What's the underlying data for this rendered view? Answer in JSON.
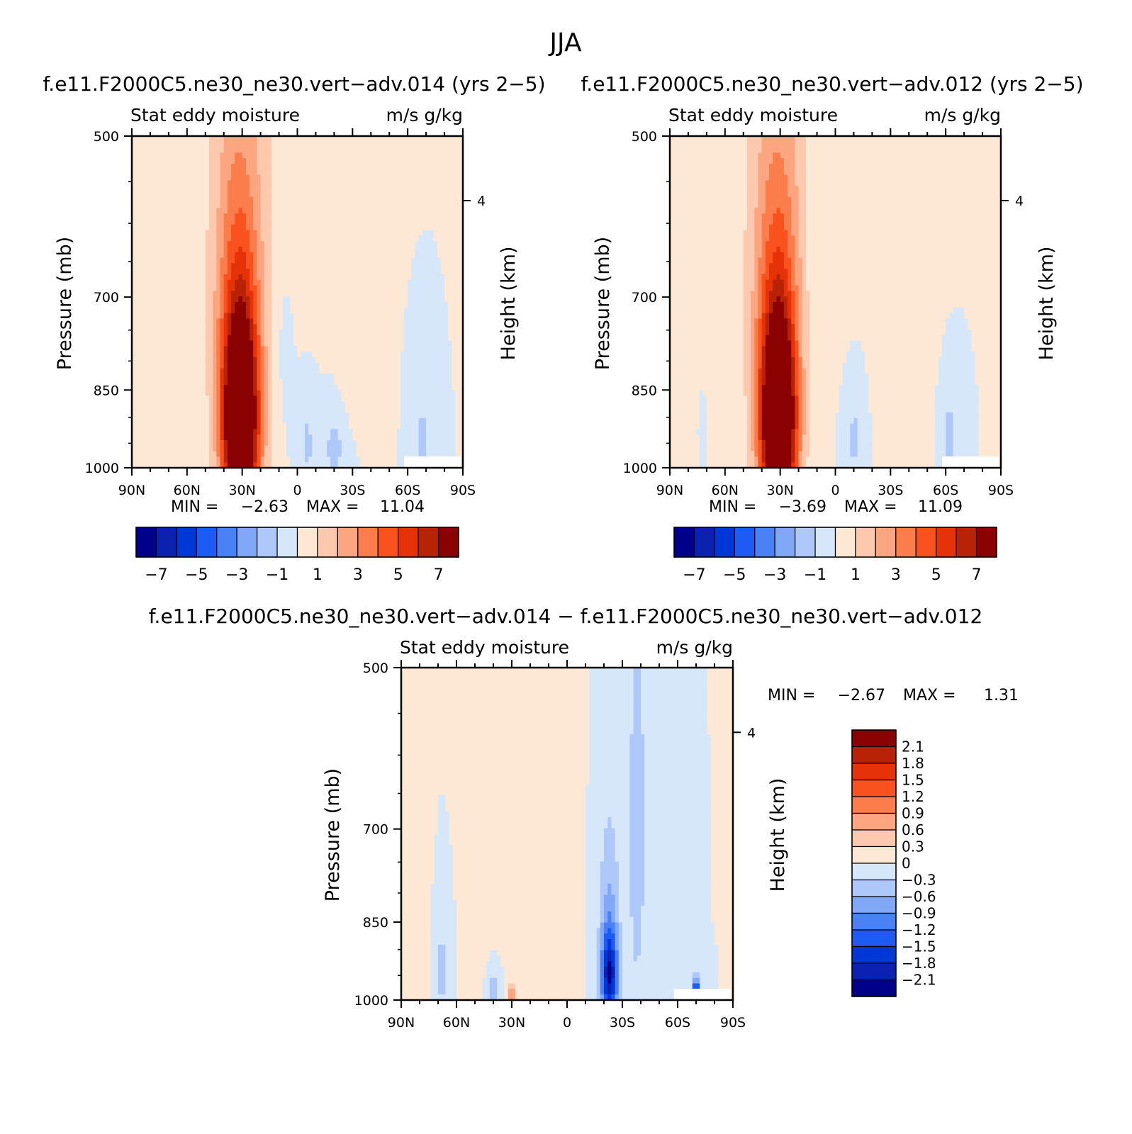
{
  "figure_title": "JJA",
  "colors": {
    "cmap": [
      "#00008b",
      "#0b22b0",
      "#0038d8",
      "#1c5cf5",
      "#4a82f5",
      "#80a8f7",
      "#aec8fa",
      "#d6e7fa",
      "#fde8d6",
      "#fdc9ae",
      "#fba680",
      "#fa7d4b",
      "#f9521f",
      "#e53209",
      "#b82206",
      "#8a0202"
    ],
    "diff_cmap": [
      "#00008b",
      "#0b22b0",
      "#0038d8",
      "#1c5cf5",
      "#4a82f5",
      "#80a8f7",
      "#aec8fa",
      "#d6e7fa",
      "#fde8d6",
      "#fdc9ae",
      "#fba680",
      "#fa7d4b",
      "#f9521f",
      "#e53209",
      "#b82206",
      "#8a0202"
    ]
  },
  "chart_data": [
    {
      "type": "heatmap",
      "title": "f.e11.F2000C5.ne30_ne30.vert−adv.014 (yrs 2−5)",
      "subtitle_left": "Stat eddy moisture",
      "subtitle_right": "m/s g/kg",
      "ylabel": "Pressure (mb)",
      "ylabel_right": "Height (km)",
      "x_ticks": [
        "90N",
        "60N",
        "30N",
        "0",
        "30S",
        "60S",
        "90S"
      ],
      "y_ticks": [
        "500",
        "700",
        "850",
        "1000"
      ],
      "right_ticks": [
        "4"
      ],
      "min_label": "MIN =",
      "min_value": "−2.63",
      "max_label": "MAX =",
      "max_value": "11.04",
      "colorbar_labels": [
        "−7",
        "−5",
        "−3",
        "−1",
        "1",
        "3",
        "5",
        "7"
      ],
      "colorbar_levels": [
        -7,
        -6,
        -5,
        -4,
        -3,
        -2,
        -1,
        0,
        1,
        2,
        3,
        4,
        5,
        6,
        7
      ],
      "features": [
        {
          "lat": 31,
          "p": 920,
          "amp": 11.0,
          "slat": 7,
          "sp": 140
        },
        {
          "lat": 32,
          "p": 700,
          "amp": 3.0,
          "slat": 9,
          "sp": 200
        },
        {
          "lat": 28,
          "p": 560,
          "amp": 0.9,
          "slat": 20,
          "sp": 260
        },
        {
          "lat": 67,
          "p": 750,
          "amp": 0.45,
          "slat": 3,
          "sp": 300
        },
        {
          "lat": 88,
          "p": 650,
          "amp": 0.4,
          "slat": 3,
          "sp": 400
        },
        {
          "lat": -5,
          "p": 950,
          "amp": -1.2,
          "slat": 4,
          "sp": 80
        },
        {
          "lat": -20,
          "p": 960,
          "amp": -1.3,
          "slat": 5,
          "sp": 60
        },
        {
          "lat": -68,
          "p": 950,
          "amp": -1.3,
          "slat": 3,
          "sp": 70
        },
        {
          "lat": -30,
          "p": 850,
          "amp": 0.4,
          "slat": 6,
          "sp": 60
        },
        {
          "lat": 8,
          "p": 760,
          "amp": -0.6,
          "slat": 5,
          "sp": 120
        }
      ]
    },
    {
      "type": "heatmap",
      "title": "f.e11.F2000C5.ne30_ne30.vert−adv.012 (yrs 2−5)",
      "subtitle_left": "Stat eddy moisture",
      "subtitle_right": "m/s g/kg",
      "ylabel": "Pressure (mb)",
      "ylabel_right": "Height (km)",
      "x_ticks": [
        "90N",
        "60N",
        "30N",
        "0",
        "30S",
        "60S",
        "90S"
      ],
      "y_ticks": [
        "500",
        "700",
        "850",
        "1000"
      ],
      "right_ticks": [
        "4"
      ],
      "min_label": "MIN =",
      "min_value": "−3.69",
      "max_label": "MAX =",
      "max_value": "11.09",
      "colorbar_labels": [
        "−7",
        "−5",
        "−3",
        "−1",
        "1",
        "3",
        "5",
        "7"
      ],
      "colorbar_levels": [
        -7,
        -6,
        -5,
        -4,
        -3,
        -2,
        -1,
        0,
        1,
        2,
        3,
        4,
        5,
        6,
        7
      ],
      "features": [
        {
          "lat": 31,
          "p": 920,
          "amp": 11.0,
          "slat": 7,
          "sp": 140
        },
        {
          "lat": 32,
          "p": 700,
          "amp": 3.0,
          "slat": 9,
          "sp": 200
        },
        {
          "lat": 28,
          "p": 560,
          "amp": 0.9,
          "slat": 20,
          "sp": 260
        },
        {
          "lat": 70,
          "p": 750,
          "amp": 0.5,
          "slat": 6,
          "sp": 300
        },
        {
          "lat": -35,
          "p": 780,
          "amp": 0.5,
          "slat": 8,
          "sp": 200
        },
        {
          "lat": -10,
          "p": 940,
          "amp": -1.2,
          "slat": 4,
          "sp": 80
        },
        {
          "lat": 72,
          "p": 920,
          "amp": -1.0,
          "slat": 2,
          "sp": 60
        },
        {
          "lat": -62,
          "p": 950,
          "amp": -1.6,
          "slat": 3,
          "sp": 60
        },
        {
          "lat": 10,
          "p": 700,
          "amp": -0.5,
          "slat": 6,
          "sp": 200
        }
      ]
    },
    {
      "type": "heatmap",
      "title": "f.e11.F2000C5.ne30_ne30.vert−adv.014 − f.e11.F2000C5.ne30_ne30.vert−adv.012",
      "subtitle_left": "Stat eddy moisture",
      "subtitle_right": "m/s g/kg",
      "ylabel": "Pressure (mb)",
      "ylabel_right": "Height (km)",
      "x_ticks": [
        "90N",
        "60N",
        "30N",
        "0",
        "30S",
        "60S",
        "90S"
      ],
      "y_ticks": [
        "500",
        "700",
        "850",
        "1000"
      ],
      "right_ticks": [
        "4"
      ],
      "min_label": "MIN =",
      "min_value": "−2.67",
      "max_label": "MAX =",
      "max_value": "1.31",
      "colorbar_labels": [
        "2.1",
        "1.8",
        "1.5",
        "1.2",
        "0.9",
        "0.6",
        "0.3",
        "0",
        "−0.3",
        "−0.6",
        "−0.9",
        "−1.2",
        "−1.5",
        "−1.8",
        "−2.1"
      ],
      "colorbar_levels": [
        -2.1,
        -1.8,
        -1.5,
        -1.2,
        -0.9,
        -0.6,
        -0.3,
        0,
        0.3,
        0.6,
        0.9,
        1.2,
        1.5,
        1.8,
        2.1
      ],
      "features": [
        {
          "lat": 20,
          "p": 650,
          "amp": 0.25,
          "slat": 10,
          "sp": 350
        },
        {
          "lat": 45,
          "p": 600,
          "amp": 0.18,
          "slat": 4,
          "sp": 300
        },
        {
          "lat": -38,
          "p": 700,
          "amp": -0.45,
          "slat": 4,
          "sp": 250
        },
        {
          "lat": -23,
          "p": 950,
          "amp": -1.6,
          "slat": 3,
          "sp": 60
        },
        {
          "lat": -23,
          "p": 880,
          "amp": -0.7,
          "slat": 4,
          "sp": 150
        },
        {
          "lat": -70,
          "p": 985,
          "amp": -2.6,
          "slat": 1.2,
          "sp": 20
        },
        {
          "lat": 68,
          "p": 940,
          "amp": -0.5,
          "slat": 2,
          "sp": 60
        },
        {
          "lat": 40,
          "p": 980,
          "amp": -0.5,
          "slat": 3,
          "sp": 40
        },
        {
          "lat": 30,
          "p": 990,
          "amp": 0.8,
          "slat": 1.5,
          "sp": 15
        },
        {
          "lat": 83,
          "p": 650,
          "amp": 0.2,
          "slat": 3,
          "sp": 400
        }
      ]
    }
  ]
}
